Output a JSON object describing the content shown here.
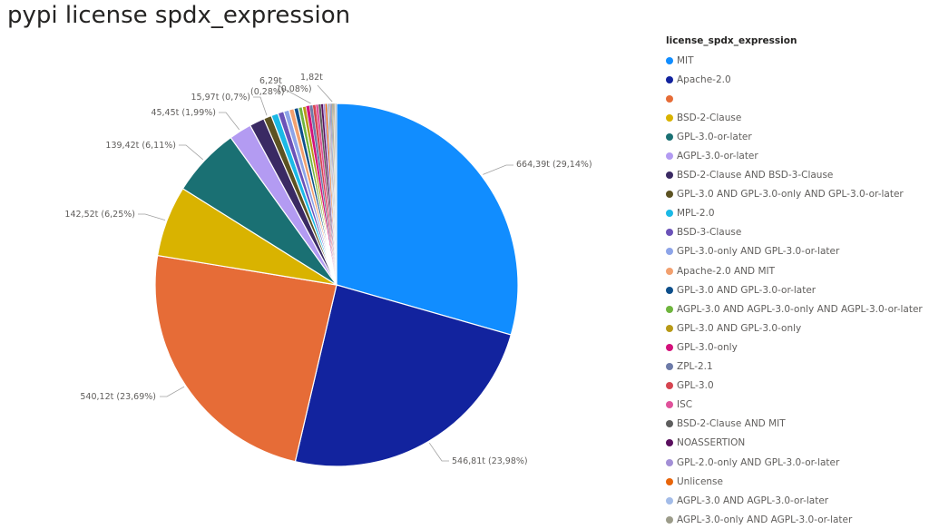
{
  "title": "pypi license spdx_expression",
  "chart_data": {
    "type": "pie",
    "title": "pypi license spdx_expression",
    "legend_title": "license_spdx_expression",
    "legend_position": "right",
    "slices": [
      {
        "name": "MIT",
        "value": 664.39,
        "percent": 29.14,
        "label": "664,39t (29,14%)",
        "color": "#118DFF"
      },
      {
        "name": "Apache-2.0",
        "value": 546.81,
        "percent": 23.98,
        "label": "546,81t (23,98%)",
        "color": "#12239E"
      },
      {
        "name": "",
        "value": 540.12,
        "percent": 23.69,
        "label": "540,12t (23,69%)",
        "color": "#E66C37"
      },
      {
        "name": "BSD-2-Clause",
        "value": 142.52,
        "percent": 6.25,
        "label": "142,52t (6,25%)",
        "color": "#D9B300"
      },
      {
        "name": "GPL-3.0-or-later",
        "value": 139.42,
        "percent": 6.11,
        "label": "139,42t (6,11%)",
        "color": "#1A7073"
      },
      {
        "name": "AGPL-3.0-or-later",
        "value": 45.45,
        "percent": 1.99,
        "label": "45,45t (1,99%)",
        "color": "#B39BF2"
      },
      {
        "name": "BSD-2-Clause AND BSD-3-Clause",
        "value": 30.0,
        "percent": 1.32,
        "label": "",
        "color": "#3A2A63"
      },
      {
        "name": "GPL-3.0 AND GPL-3.0-only AND GPL-3.0-or-later",
        "value": 15.97,
        "percent": 0.7,
        "label": "15,97t (0,7%)",
        "color": "#5C5222"
      },
      {
        "name": "MPL-2.0",
        "value": 14.0,
        "percent": 0.61,
        "label": "",
        "color": "#1BB9E6"
      },
      {
        "name": "BSD-3-Clause",
        "value": 12.0,
        "percent": 0.53,
        "label": "",
        "color": "#6B52B8"
      },
      {
        "name": "GPL-3.0-only AND GPL-3.0-or-later",
        "value": 11.0,
        "percent": 0.48,
        "label": "",
        "color": "#8DA4E8"
      },
      {
        "name": "Apache-2.0 AND MIT",
        "value": 10.0,
        "percent": 0.44,
        "label": "",
        "color": "#F2A06E"
      },
      {
        "name": "GPL-3.0 AND GPL-3.0-or-later",
        "value": 9.0,
        "percent": 0.39,
        "label": "",
        "color": "#0D4F8B"
      },
      {
        "name": "AGPL-3.0 AND AGPL-3.0-only AND AGPL-3.0-or-later",
        "value": 8.0,
        "percent": 0.35,
        "label": "",
        "color": "#6FB53E"
      },
      {
        "name": "GPL-3.0 AND GPL-3.0-only",
        "value": 7.5,
        "percent": 0.33,
        "label": "",
        "color": "#B89A17"
      },
      {
        "name": "GPL-3.0-only",
        "value": 7.0,
        "percent": 0.31,
        "label": "",
        "color": "#D4117B"
      },
      {
        "name": "ZPL-2.1",
        "value": 6.29,
        "percent": 0.28,
        "label": "6,29t (0,28%)",
        "color": "#6D7BA8"
      },
      {
        "name": "GPL-3.0",
        "value": 6.0,
        "percent": 0.26,
        "label": "",
        "color": "#D64550"
      },
      {
        "name": "ISC",
        "value": 5.5,
        "percent": 0.24,
        "label": "",
        "color": "#E0529B"
      },
      {
        "name": "BSD-2-Clause AND MIT",
        "value": 5.0,
        "percent": 0.22,
        "label": "",
        "color": "#5E5E5E"
      },
      {
        "name": "NOASSERTION",
        "value": 4.5,
        "percent": 0.2,
        "label": "",
        "color": "#5A0F5E"
      },
      {
        "name": "GPL-2.0-only AND GPL-3.0-or-later",
        "value": 4.0,
        "percent": 0.18,
        "label": "",
        "color": "#A38FD6"
      },
      {
        "name": "Unlicense",
        "value": 3.5,
        "percent": 0.15,
        "label": "",
        "color": "#E8650A"
      },
      {
        "name": "AGPL-3.0 AND AGPL-3.0-or-later",
        "value": 3.0,
        "percent": 0.13,
        "label": "",
        "color": "#A3BCE8"
      },
      {
        "name": "AGPL-3.0-only AND AGPL-3.0-or-later",
        "value": 2.5,
        "percent": 0.11,
        "label": "",
        "color": "#9C9C8A"
      },
      {
        "name": "",
        "value": 2.2,
        "percent": 0.1,
        "label": "",
        "color": "#7C5A9E"
      },
      {
        "name": "",
        "value": 2.0,
        "percent": 0.09,
        "label": "",
        "color": "#3E6B8A"
      },
      {
        "name": "",
        "value": 1.82,
        "percent": 0.08,
        "label": "1,82t (0,08%)",
        "color": "#8A6A2E"
      },
      {
        "name": "",
        "value": 1.6,
        "percent": 0.07,
        "label": "",
        "color": "#4A4A4A"
      },
      {
        "name": "",
        "value": 1.4,
        "percent": 0.06,
        "label": "",
        "color": "#B8860B"
      },
      {
        "name": "",
        "value": 1.3,
        "percent": 0.06,
        "label": "",
        "color": "#2F4F4F"
      },
      {
        "name": "",
        "value": 1.2,
        "percent": 0.05,
        "label": "",
        "color": "#7A6B4F"
      },
      {
        "name": "",
        "value": 1.1,
        "percent": 0.05,
        "label": "",
        "color": "#556B2F"
      },
      {
        "name": "",
        "value": 1.0,
        "percent": 0.04,
        "label": "",
        "color": "#4B3C6E"
      }
    ]
  }
}
